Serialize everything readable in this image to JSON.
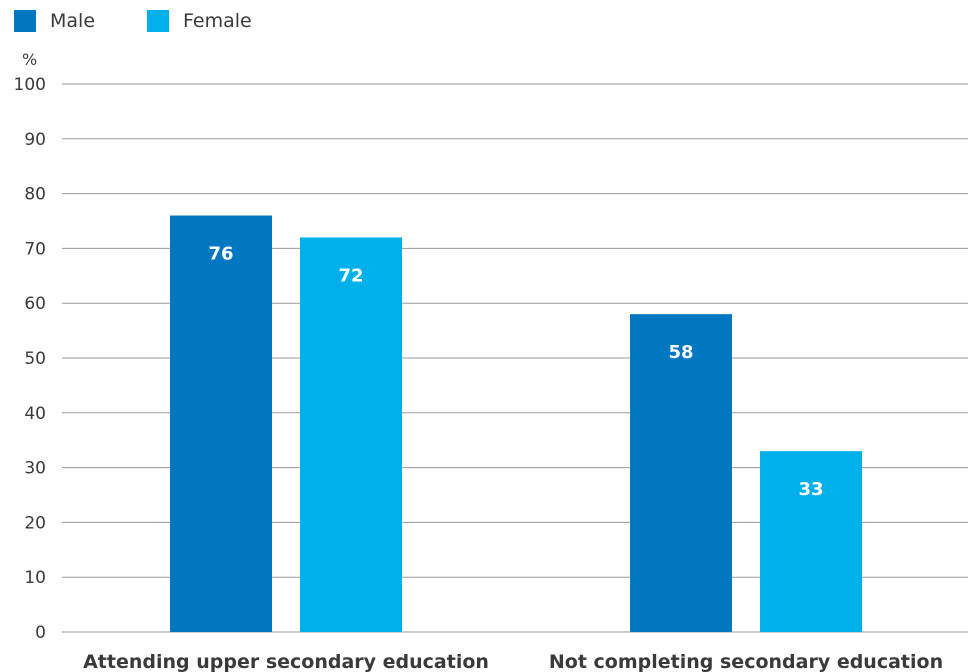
{
  "chart_data": {
    "type": "bar",
    "categories": [
      "Attending upper secondary education",
      "Not completing secondary education"
    ],
    "series": [
      {
        "name": "Male",
        "color": "#0077c0",
        "values": [
          76,
          58
        ]
      },
      {
        "name": "Female",
        "color": "#00b0eb",
        "values": [
          72,
          33
        ]
      }
    ],
    "yunit": "%",
    "ylim": [
      0,
      100
    ],
    "yticks": [
      0,
      10,
      20,
      30,
      40,
      50,
      60,
      70,
      80,
      90,
      100
    ],
    "grid": true,
    "legend": "top-left"
  }
}
